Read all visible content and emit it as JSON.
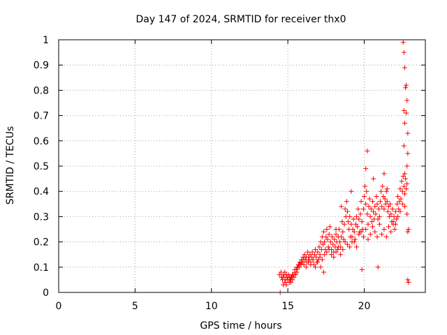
{
  "chart_data": {
    "type": "scatter",
    "title": "Day 147 of 2024, SRMTID for receiver thx0",
    "xlabel": "GPS time / hours",
    "ylabel": "SRMTID / TECUs",
    "xlim": [
      0,
      24
    ],
    "ylim": [
      0,
      1
    ],
    "xticks": [
      0,
      5,
      10,
      15,
      20
    ],
    "xtick_labels": [
      "0",
      "5",
      "10",
      "15",
      "20"
    ],
    "yticks": [
      0,
      0.1,
      0.2,
      0.3,
      0.4,
      0.5,
      0.6,
      0.7,
      0.8,
      0.9,
      1
    ],
    "ytick_labels": [
      "0",
      "0.1",
      "0.2",
      "0.3",
      "0.4",
      "0.5",
      "0.6",
      "0.7",
      "0.8",
      "0.9",
      "1"
    ],
    "grid": true,
    "marker": "+",
    "marker_color": "#ff0000",
    "series": [
      {
        "name": "SRMTID",
        "x": [
          14.45,
          14.55,
          14.6,
          14.65,
          14.7,
          14.75,
          14.8,
          14.85,
          14.9,
          14.95,
          15.0,
          15.05,
          15.1,
          15.15,
          15.2,
          15.25,
          15.3,
          15.35,
          15.4,
          15.45,
          15.5,
          15.55,
          15.6,
          15.65,
          15.7,
          15.75,
          15.8,
          15.85,
          15.9,
          15.95,
          16.0,
          16.05,
          16.1,
          16.15,
          16.2,
          16.25,
          16.3,
          16.35,
          16.4,
          16.45,
          16.5,
          16.55,
          16.6,
          16.65,
          16.7,
          16.75,
          16.8,
          16.85,
          16.9,
          16.95,
          17.0,
          17.05,
          17.1,
          17.15,
          17.2,
          17.25,
          17.3,
          17.35,
          17.4,
          17.45,
          17.5,
          17.55,
          17.6,
          17.65,
          17.7,
          17.75,
          17.8,
          17.85,
          17.9,
          17.95,
          18.0,
          18.05,
          18.1,
          18.15,
          18.2,
          18.25,
          18.3,
          18.35,
          18.4,
          18.45,
          18.5,
          18.55,
          18.6,
          18.65,
          18.7,
          18.75,
          18.8,
          18.85,
          18.9,
          18.95,
          19.0,
          19.05,
          19.1,
          19.15,
          19.2,
          19.25,
          19.3,
          19.35,
          19.4,
          19.45,
          19.5,
          19.55,
          19.6,
          19.65,
          19.7,
          19.75,
          19.8,
          19.85,
          19.9,
          19.95,
          20.0,
          20.05,
          20.1,
          20.15,
          20.2,
          20.25,
          20.3,
          20.35,
          20.4,
          20.45,
          20.5,
          20.55,
          20.6,
          20.65,
          20.7,
          20.75,
          20.8,
          20.85,
          20.9,
          20.95,
          21.0,
          21.05,
          21.1,
          21.15,
          21.2,
          21.25,
          21.3,
          21.35,
          21.4,
          21.45,
          21.5,
          21.55,
          21.6,
          21.65,
          21.7,
          21.75,
          21.8,
          21.85,
          21.9,
          21.95,
          22.0,
          22.05,
          22.1,
          22.15,
          22.2,
          22.25,
          22.3,
          22.35,
          22.4,
          22.45,
          22.5,
          22.55,
          22.6,
          22.65,
          22.7,
          22.75,
          22.8,
          22.85,
          22.9,
          14.6,
          14.7,
          14.8,
          14.9,
          15.0,
          15.1,
          15.2,
          15.3,
          15.45,
          15.6,
          15.75,
          15.9,
          16.05,
          16.2,
          16.35,
          16.5,
          16.65,
          16.8,
          16.95,
          17.1,
          17.25,
          17.4,
          17.55,
          17.7,
          17.85,
          18.0,
          18.15,
          18.3,
          18.45,
          18.6,
          18.75,
          18.9,
          19.05,
          19.2,
          19.35,
          19.5,
          19.65,
          19.8,
          19.95,
          20.1,
          20.25,
          20.4,
          20.55,
          20.7,
          20.85,
          21.0,
          21.15,
          21.3,
          21.45,
          21.6,
          21.75,
          21.9,
          22.05,
          22.2,
          22.35,
          22.5,
          22.65,
          22.8,
          17.15,
          17.35,
          18.15,
          18.5,
          19.15,
          19.85,
          20.1,
          20.2,
          20.6,
          20.9,
          21.3,
          21.5,
          22.55,
          22.6,
          22.65,
          22.7,
          22.75,
          22.8,
          22.85,
          22.6,
          22.65,
          22.75,
          22.6,
          22.85,
          22.8,
          22.9,
          14.5,
          22.65,
          22.85
        ],
        "y": [
          0.07,
          0.08,
          0.06,
          0.05,
          0.07,
          0.06,
          0.08,
          0.05,
          0.07,
          0.06,
          0.05,
          0.07,
          0.06,
          0.05,
          0.04,
          0.06,
          0.05,
          0.07,
          0.06,
          0.08,
          0.07,
          0.09,
          0.08,
          0.1,
          0.11,
          0.1,
          0.12,
          0.11,
          0.13,
          0.12,
          0.14,
          0.13,
          0.15,
          0.13,
          0.14,
          0.12,
          0.16,
          0.14,
          0.13,
          0.15,
          0.12,
          0.14,
          0.16,
          0.13,
          0.11,
          0.15,
          0.17,
          0.14,
          0.12,
          0.16,
          0.13,
          0.18,
          0.15,
          0.2,
          0.17,
          0.22,
          0.19,
          0.24,
          0.2,
          0.17,
          0.22,
          0.25,
          0.21,
          0.18,
          0.23,
          0.26,
          0.2,
          0.17,
          0.22,
          0.19,
          0.16,
          0.21,
          0.18,
          0.23,
          0.2,
          0.17,
          0.22,
          0.25,
          0.2,
          0.18,
          0.22,
          0.28,
          0.24,
          0.21,
          0.27,
          0.33,
          0.3,
          0.36,
          0.32,
          0.28,
          0.25,
          0.3,
          0.22,
          0.27,
          0.2,
          0.25,
          0.29,
          0.24,
          0.21,
          0.27,
          0.3,
          0.26,
          0.33,
          0.29,
          0.24,
          0.31,
          0.36,
          0.28,
          0.25,
          0.33,
          0.38,
          0.42,
          0.35,
          0.4,
          0.31,
          0.27,
          0.34,
          0.37,
          0.3,
          0.33,
          0.28,
          0.36,
          0.32,
          0.29,
          0.34,
          0.31,
          0.38,
          0.35,
          0.29,
          0.33,
          0.3,
          0.36,
          0.4,
          0.34,
          0.42,
          0.38,
          0.33,
          0.37,
          0.35,
          0.4,
          0.36,
          0.32,
          0.34,
          0.3,
          0.35,
          0.31,
          0.28,
          0.33,
          0.27,
          0.3,
          0.25,
          0.32,
          0.29,
          0.35,
          0.38,
          0.33,
          0.36,
          0.41,
          0.37,
          0.44,
          0.4,
          0.46,
          0.42,
          0.39,
          0.45,
          0.41,
          0.43,
          0.05,
          0.04,
          0.06,
          0.03,
          0.04,
          0.03,
          0.05,
          0.04,
          0.06,
          0.07,
          0.09,
          0.1,
          0.11,
          0.12,
          0.11,
          0.1,
          0.12,
          0.11,
          0.13,
          0.1,
          0.12,
          0.14,
          0.13,
          0.15,
          0.16,
          0.17,
          0.15,
          0.14,
          0.16,
          0.18,
          0.15,
          0.17,
          0.2,
          0.19,
          0.18,
          0.22,
          0.2,
          0.18,
          0.23,
          0.24,
          0.22,
          0.25,
          0.21,
          0.23,
          0.26,
          0.24,
          0.22,
          0.27,
          0.23,
          0.25,
          0.22,
          0.26,
          0.24,
          0.28,
          0.27,
          0.3,
          0.32,
          0.35,
          0.34,
          0.31,
          0.1,
          0.08,
          0.25,
          0.34,
          0.4,
          0.09,
          0.49,
          0.56,
          0.45,
          0.1,
          0.47,
          0.41,
          0.99,
          0.95,
          0.89,
          0.81,
          0.82,
          0.76,
          0.63,
          0.72,
          0.67,
          0.71,
          0.58,
          0.55,
          0.5,
          0.25,
          0.0,
          0.47,
          0.24
        ]
      }
    ]
  }
}
